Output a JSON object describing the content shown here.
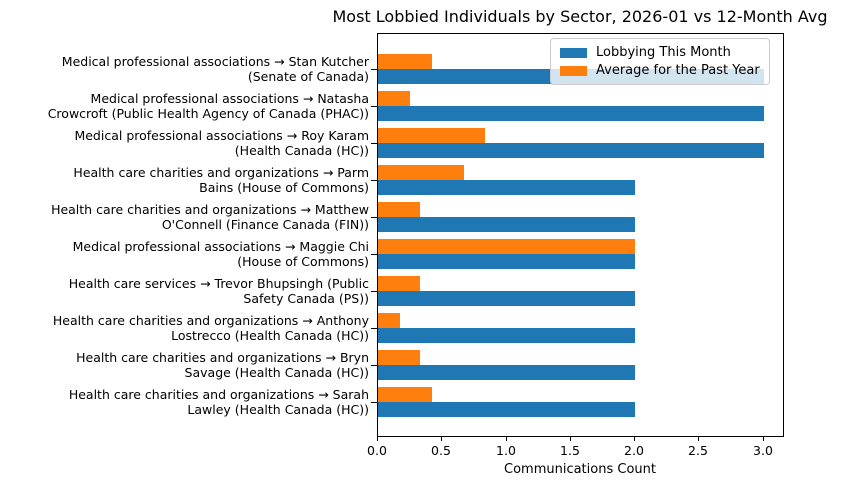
{
  "chart_data": {
    "type": "bar",
    "orientation": "horizontal",
    "title": "Most Lobbied Individuals by Sector, 2026-01 vs 12-Month Avg",
    "xlabel": "Communications Count",
    "ylabel": "",
    "xlim": [
      0,
      3.15
    ],
    "xticks": [
      0.0,
      0.5,
      1.0,
      1.5,
      2.0,
      2.5,
      3.0
    ],
    "grid": false,
    "legend_position": "upper right",
    "background_color": "#ffffff",
    "categories": [
      "Medical professional associations → Stan Kutcher (Senate of Canada)",
      "Medical professional associations → Natasha Crowcroft (Public Health Agency of Canada (PHAC))",
      "Medical professional associations → Roy Karam (Health Canada (HC))",
      "Health care charities and organizations → Parm Bains (House of Commons)",
      "Health care charities and organizations → Matthew O'Connell (Finance Canada (FIN))",
      "Medical professional associations → Maggie Chi (House of Commons)",
      "Health care services → Trevor Bhupsingh (Public Safety Canada (PS))",
      "Health care charities and organizations → Anthony Lostrecco (Health Canada (HC))",
      "Health care charities and organizations → Bryn Savage (Health Canada (HC))",
      "Health care charities and organizations → Sarah Lawley (Health Canada (HC))"
    ],
    "category_lines": [
      [
        "Medical professional associations → Stan Kutcher",
        "(Senate of Canada)"
      ],
      [
        "Medical professional associations → Natasha",
        "Crowcroft (Public Health Agency of Canada (PHAC))"
      ],
      [
        "Medical professional associations → Roy Karam",
        "(Health Canada (HC))"
      ],
      [
        "Health care charities and organizations → Parm",
        "Bains (House of Commons)"
      ],
      [
        "Health care charities and organizations → Matthew",
        "O'Connell (Finance Canada (FIN))"
      ],
      [
        "Medical professional associations → Maggie Chi",
        "(House of Commons)"
      ],
      [
        "Health care services → Trevor Bhupsingh (Public",
        "Safety Canada (PS))"
      ],
      [
        "Health care charities and organizations → Anthony",
        "Lostrecco (Health Canada (HC))"
      ],
      [
        "Health care charities and organizations → Bryn",
        "Savage (Health Canada (HC))"
      ],
      [
        "Health care charities and organizations → Sarah",
        "Lawley (Health Canada (HC))"
      ]
    ],
    "series": [
      {
        "name": "Lobbying This Month",
        "color": "#1f77b4",
        "values": [
          3.0,
          3.0,
          3.0,
          2.0,
          2.0,
          2.0,
          2.0,
          2.0,
          2.0,
          2.0
        ]
      },
      {
        "name": "Average for the Past Year",
        "color": "#ff7f0e",
        "values": [
          0.42,
          0.25,
          0.83,
          0.67,
          0.33,
          2.0,
          0.33,
          0.17,
          0.33,
          0.42
        ]
      }
    ]
  }
}
